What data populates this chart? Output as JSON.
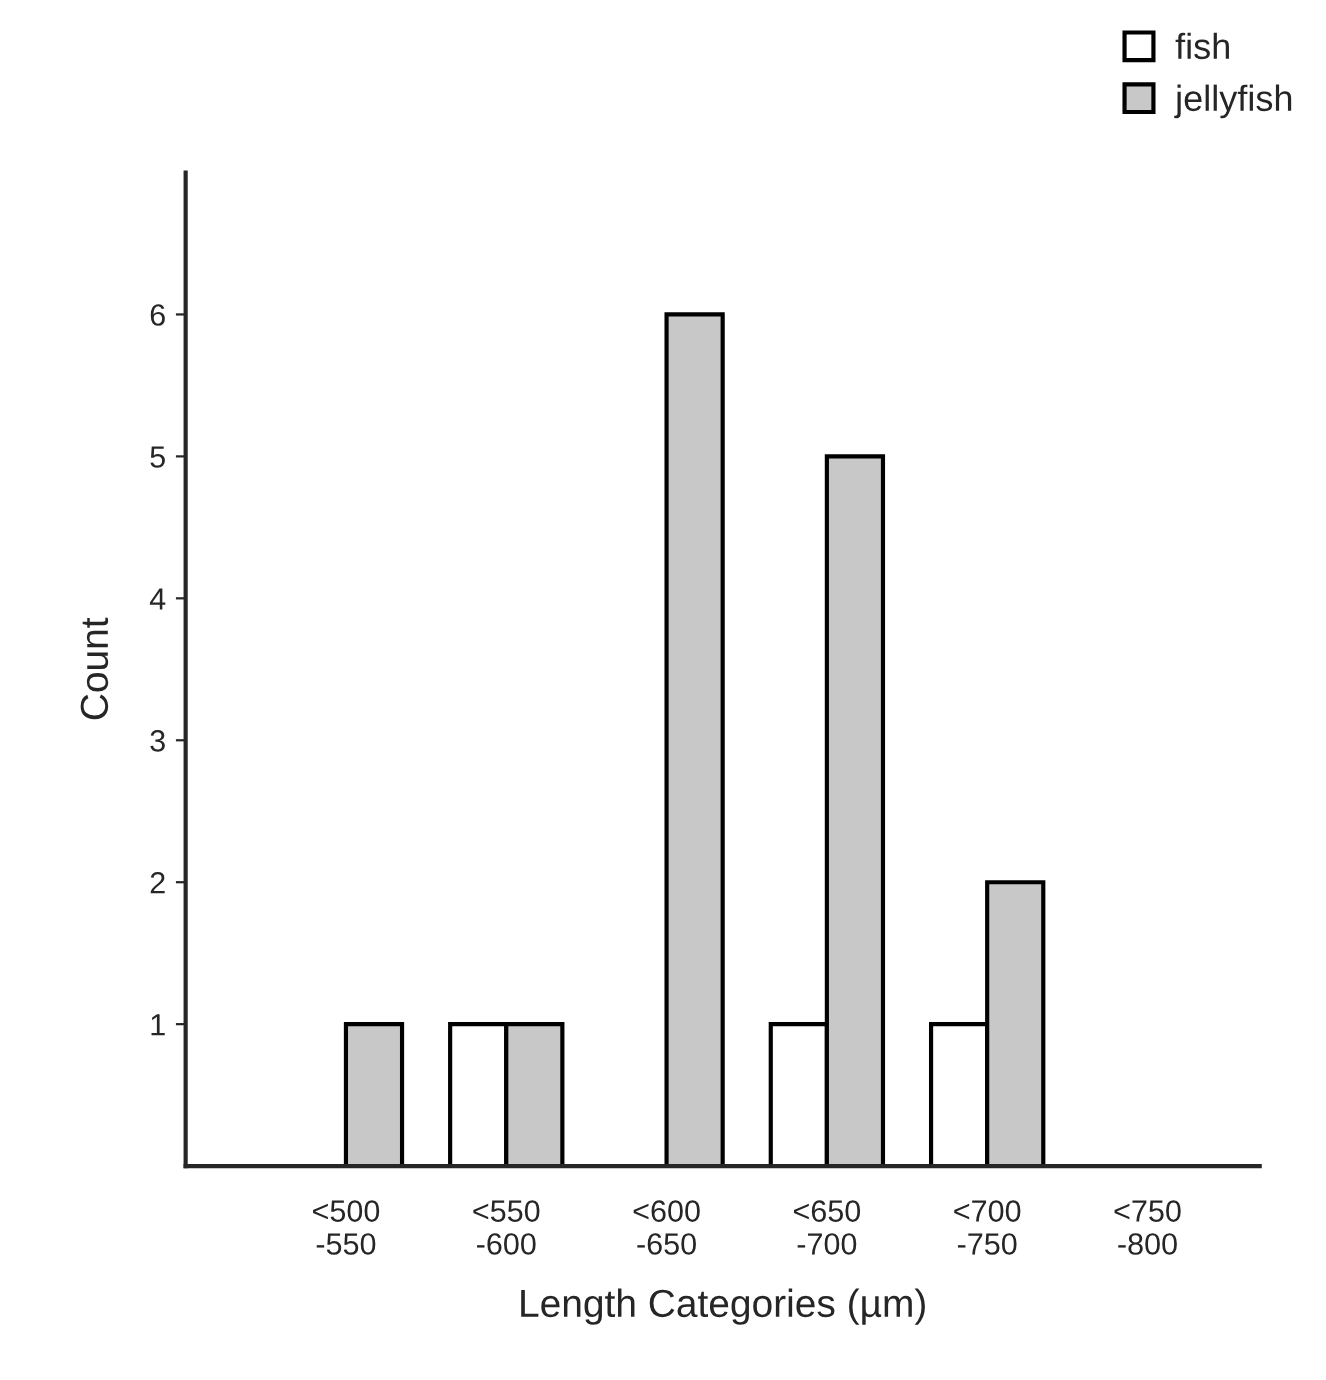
{
  "chart_data": {
    "type": "bar",
    "xlabel": "Length Categories (µm)",
    "ylabel": "Count",
    "categories": [
      "<500\n-550",
      "<550\n-600",
      "<600\n-650",
      "<650\n-700",
      "<700\n-750",
      "<750\n-800"
    ],
    "series": [
      {
        "name": "fish",
        "color": "#ffffff",
        "values": [
          0,
          1,
          0,
          1,
          1,
          0
        ]
      },
      {
        "name": "jellyfish",
        "color": "#c8c8c8",
        "values": [
          1,
          1,
          6,
          5,
          2,
          0
        ]
      }
    ],
    "ylim": [
      0,
      7
    ],
    "yticks": [
      1,
      2,
      3,
      4,
      5,
      6
    ],
    "grid": false,
    "legend": "top right"
  }
}
